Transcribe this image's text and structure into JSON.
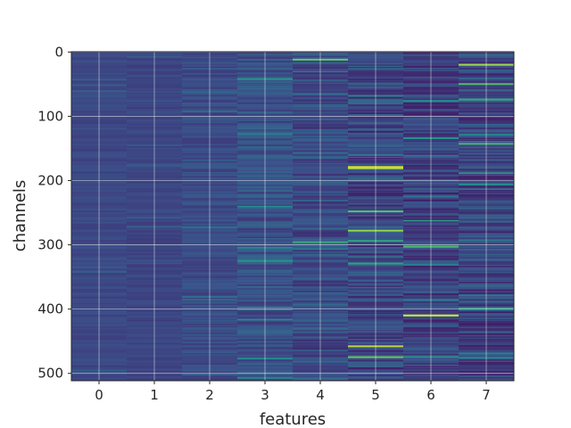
{
  "chart_data": {
    "type": "heatmap",
    "title": "",
    "xlabel": "features",
    "ylabel": "channels",
    "x_categories": [
      "0",
      "1",
      "2",
      "3",
      "4",
      "5",
      "6",
      "7"
    ],
    "y_ticks": [
      0,
      100,
      200,
      300,
      400,
      500
    ],
    "ylim": [
      511,
      0
    ],
    "rows": 512,
    "colormap": "viridis",
    "grid": true,
    "value_range": [
      0,
      1
    ],
    "column_stats": [
      {
        "feature": 0,
        "mean": 0.22,
        "spread": 0.03
      },
      {
        "feature": 1,
        "mean": 0.21,
        "spread": 0.03
      },
      {
        "feature": 2,
        "mean": 0.23,
        "spread": 0.05
      },
      {
        "feature": 3,
        "mean": 0.25,
        "spread": 0.08
      },
      {
        "feature": 4,
        "mean": 0.24,
        "spread": 0.1
      },
      {
        "feature": 5,
        "mean": 0.22,
        "spread": 0.12
      },
      {
        "feature": 6,
        "mean": 0.2,
        "spread": 0.11
      },
      {
        "feature": 7,
        "mean": 0.21,
        "spread": 0.12
      }
    ],
    "highlights": [
      {
        "feature": 4,
        "channel": 11,
        "value": 0.75
      },
      {
        "feature": 4,
        "channel": 295,
        "value": 0.6
      },
      {
        "feature": 5,
        "channel": 178,
        "value": 0.95
      },
      {
        "feature": 5,
        "channel": 180,
        "value": 0.9
      },
      {
        "feature": 5,
        "channel": 247,
        "value": 0.7
      },
      {
        "feature": 5,
        "channel": 277,
        "value": 0.85
      },
      {
        "feature": 5,
        "channel": 457,
        "value": 0.9
      },
      {
        "feature": 5,
        "channel": 474,
        "value": 0.75
      },
      {
        "feature": 6,
        "channel": 302,
        "value": 0.7
      },
      {
        "feature": 6,
        "channel": 409,
        "value": 0.95
      },
      {
        "feature": 7,
        "channel": 19,
        "value": 0.85
      },
      {
        "feature": 7,
        "channel": 49,
        "value": 0.7
      },
      {
        "feature": 7,
        "channel": 142,
        "value": 0.65
      }
    ]
  }
}
